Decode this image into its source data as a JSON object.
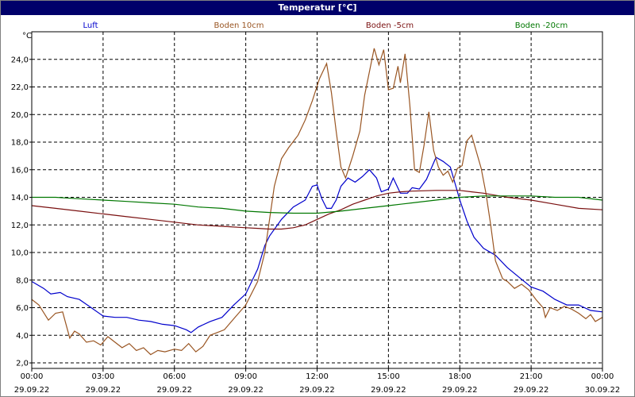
{
  "window": {
    "title": "Temperatur [°C]"
  },
  "chart_data": {
    "type": "line",
    "title": "Temperatur [°C]",
    "ylabel": "°C",
    "ylim": [
      1.6,
      26.0
    ],
    "yticks": [
      "2,0",
      "4,0",
      "6,0",
      "8,0",
      "10,0",
      "12,0",
      "14,0",
      "16,0",
      "18,0",
      "20,0",
      "22,0",
      "24,0"
    ],
    "ytick_values": [
      2,
      4,
      6,
      8,
      10,
      12,
      14,
      16,
      18,
      20,
      22,
      24
    ],
    "xlim": [
      0,
      24
    ],
    "xtick_values": [
      0,
      3,
      6,
      9,
      12,
      15,
      18,
      21,
      24
    ],
    "xtick_times": [
      "00:00",
      "03:00",
      "06:00",
      "09:00",
      "12:00",
      "15:00",
      "18:00",
      "21:00",
      "00:00"
    ],
    "xtick_dates": [
      "29.09.22",
      "29.09.22",
      "29.09.22",
      "29.09.22",
      "29.09.22",
      "29.09.22",
      "29.09.22",
      "29.09.22",
      "30.09.22"
    ],
    "grid": true,
    "legend_position": "top",
    "series": [
      {
        "name": "Luft",
        "color": "#0000cc",
        "points": [
          [
            0,
            7.9
          ],
          [
            0.5,
            7.4
          ],
          [
            0.8,
            7.0
          ],
          [
            1.2,
            7.1
          ],
          [
            1.5,
            6.8
          ],
          [
            2,
            6.6
          ],
          [
            2.5,
            6.0
          ],
          [
            3,
            5.4
          ],
          [
            3.5,
            5.3
          ],
          [
            4,
            5.3
          ],
          [
            4.5,
            5.1
          ],
          [
            5,
            5.0
          ],
          [
            5.5,
            4.8
          ],
          [
            6,
            4.7
          ],
          [
            6.5,
            4.4
          ],
          [
            6.7,
            4.2
          ],
          [
            7,
            4.6
          ],
          [
            7.5,
            5.0
          ],
          [
            8,
            5.3
          ],
          [
            8.5,
            6.2
          ],
          [
            9,
            7.0
          ],
          [
            9.5,
            8.8
          ],
          [
            9.8,
            10.5
          ],
          [
            10,
            11.2
          ],
          [
            10.5,
            12.4
          ],
          [
            11,
            13.3
          ],
          [
            11.5,
            13.8
          ],
          [
            11.8,
            14.8
          ],
          [
            12,
            14.9
          ],
          [
            12.2,
            13.9
          ],
          [
            12.4,
            13.2
          ],
          [
            12.6,
            13.2
          ],
          [
            12.8,
            13.8
          ],
          [
            13,
            14.8
          ],
          [
            13.3,
            15.4
          ],
          [
            13.6,
            15.1
          ],
          [
            13.9,
            15.5
          ],
          [
            14.2,
            16.0
          ],
          [
            14.5,
            15.4
          ],
          [
            14.7,
            14.4
          ],
          [
            15,
            14.6
          ],
          [
            15.2,
            15.4
          ],
          [
            15.5,
            14.3
          ],
          [
            15.8,
            14.3
          ],
          [
            16,
            14.7
          ],
          [
            16.3,
            14.6
          ],
          [
            16.6,
            15.3
          ],
          [
            17,
            16.9
          ],
          [
            17.3,
            16.6
          ],
          [
            17.6,
            16.2
          ],
          [
            17.8,
            15.0
          ],
          [
            18,
            13.8
          ],
          [
            18.3,
            12.3
          ],
          [
            18.6,
            11.1
          ],
          [
            19,
            10.3
          ],
          [
            19.5,
            9.8
          ],
          [
            20,
            8.9
          ],
          [
            20.5,
            8.2
          ],
          [
            21,
            7.5
          ],
          [
            21.5,
            7.2
          ],
          [
            22,
            6.6
          ],
          [
            22.5,
            6.2
          ],
          [
            23,
            6.2
          ],
          [
            23.5,
            5.8
          ],
          [
            24,
            5.7
          ]
        ]
      },
      {
        "name": "Boden 10cm",
        "color": "#995522",
        "points": [
          [
            0,
            6.6
          ],
          [
            0.3,
            6.2
          ],
          [
            0.7,
            5.1
          ],
          [
            1,
            5.6
          ],
          [
            1.3,
            5.7
          ],
          [
            1.6,
            3.8
          ],
          [
            1.8,
            4.3
          ],
          [
            2,
            4.1
          ],
          [
            2.3,
            3.5
          ],
          [
            2.6,
            3.6
          ],
          [
            2.9,
            3.3
          ],
          [
            3.2,
            3.9
          ],
          [
            3.5,
            3.5
          ],
          [
            3.8,
            3.1
          ],
          [
            4.1,
            3.4
          ],
          [
            4.4,
            2.9
          ],
          [
            4.7,
            3.1
          ],
          [
            5,
            2.6
          ],
          [
            5.3,
            2.9
          ],
          [
            5.6,
            2.8
          ],
          [
            6,
            3.0
          ],
          [
            6.3,
            2.9
          ],
          [
            6.6,
            3.4
          ],
          [
            6.9,
            2.8
          ],
          [
            7.2,
            3.2
          ],
          [
            7.5,
            4.0
          ],
          [
            7.8,
            4.2
          ],
          [
            8.1,
            4.4
          ],
          [
            8.5,
            5.2
          ],
          [
            9,
            6.2
          ],
          [
            9.5,
            7.9
          ],
          [
            9.8,
            10.0
          ],
          [
            10,
            12.4
          ],
          [
            10.2,
            14.8
          ],
          [
            10.5,
            16.8
          ],
          [
            10.8,
            17.6
          ],
          [
            11.2,
            18.5
          ],
          [
            11.5,
            19.6
          ],
          [
            11.8,
            21.0
          ],
          [
            12.1,
            22.6
          ],
          [
            12.4,
            23.7
          ],
          [
            12.6,
            21.6
          ],
          [
            12.8,
            18.8
          ],
          [
            13.0,
            16.2
          ],
          [
            13.2,
            15.4
          ],
          [
            13.5,
            17.0
          ],
          [
            13.8,
            18.8
          ],
          [
            14.0,
            21.4
          ],
          [
            14.2,
            23.1
          ],
          [
            14.4,
            24.8
          ],
          [
            14.6,
            23.6
          ],
          [
            14.8,
            24.7
          ],
          [
            15.0,
            21.8
          ],
          [
            15.2,
            21.9
          ],
          [
            15.4,
            23.5
          ],
          [
            15.5,
            22.3
          ],
          [
            15.7,
            24.4
          ],
          [
            15.9,
            20.7
          ],
          [
            16.1,
            16.0
          ],
          [
            16.3,
            15.8
          ],
          [
            16.5,
            17.8
          ],
          [
            16.7,
            20.2
          ],
          [
            16.9,
            17.4
          ],
          [
            17.1,
            16.2
          ],
          [
            17.3,
            15.6
          ],
          [
            17.5,
            15.9
          ],
          [
            17.7,
            15.1
          ],
          [
            17.9,
            16.1
          ],
          [
            18.1,
            16.3
          ],
          [
            18.3,
            18.1
          ],
          [
            18.5,
            18.5
          ],
          [
            18.7,
            17.3
          ],
          [
            18.9,
            16.1
          ],
          [
            19.1,
            14.3
          ],
          [
            19.3,
            12.0
          ],
          [
            19.5,
            9.4
          ],
          [
            19.8,
            8.1
          ],
          [
            20,
            7.9
          ],
          [
            20.3,
            7.4
          ],
          [
            20.6,
            7.7
          ],
          [
            20.9,
            7.3
          ],
          [
            21.2,
            6.6
          ],
          [
            21.5,
            6.0
          ],
          [
            21.6,
            5.3
          ],
          [
            21.8,
            6.0
          ],
          [
            22.1,
            5.8
          ],
          [
            22.4,
            6.1
          ],
          [
            22.7,
            5.9
          ],
          [
            23,
            5.6
          ],
          [
            23.3,
            5.2
          ],
          [
            23.5,
            5.5
          ],
          [
            23.7,
            5.0
          ],
          [
            24,
            5.3
          ]
        ]
      },
      {
        "name": "Boden -5cm",
        "color": "#7a1010",
        "points": [
          [
            0,
            13.4
          ],
          [
            1,
            13.2
          ],
          [
            2,
            13.0
          ],
          [
            3,
            12.8
          ],
          [
            4,
            12.6
          ],
          [
            5,
            12.4
          ],
          [
            6,
            12.2
          ],
          [
            7,
            12.0
          ],
          [
            8,
            11.9
          ],
          [
            9,
            11.8
          ],
          [
            9.5,
            11.75
          ],
          [
            10,
            11.7
          ],
          [
            10.5,
            11.7
          ],
          [
            11,
            11.8
          ],
          [
            11.5,
            12.0
          ],
          [
            12,
            12.4
          ],
          [
            12.5,
            12.8
          ],
          [
            13,
            13.1
          ],
          [
            13.5,
            13.5
          ],
          [
            14,
            13.8
          ],
          [
            14.5,
            14.1
          ],
          [
            15,
            14.3
          ],
          [
            15.5,
            14.4
          ],
          [
            16,
            14.45
          ],
          [
            17,
            14.5
          ],
          [
            18,
            14.5
          ],
          [
            18.5,
            14.4
          ],
          [
            19,
            14.3
          ],
          [
            20,
            14.0
          ],
          [
            21,
            13.8
          ],
          [
            22,
            13.5
          ],
          [
            23,
            13.2
          ],
          [
            24,
            13.1
          ]
        ]
      },
      {
        "name": "Boden -20cm",
        "color": "#007700",
        "points": [
          [
            0,
            14.0
          ],
          [
            1,
            14.0
          ],
          [
            2,
            13.9
          ],
          [
            3,
            13.8
          ],
          [
            4,
            13.7
          ],
          [
            5,
            13.6
          ],
          [
            6,
            13.5
          ],
          [
            7,
            13.3
          ],
          [
            8,
            13.2
          ],
          [
            9,
            13.0
          ],
          [
            10,
            12.9
          ],
          [
            11,
            12.85
          ],
          [
            12,
            12.85
          ],
          [
            13,
            13.0
          ],
          [
            14,
            13.2
          ],
          [
            15,
            13.4
          ],
          [
            16,
            13.6
          ],
          [
            17,
            13.8
          ],
          [
            18,
            14.0
          ],
          [
            19,
            14.1
          ],
          [
            20,
            14.1
          ],
          [
            21,
            14.1
          ],
          [
            22,
            14.0
          ],
          [
            23,
            14.0
          ],
          [
            24,
            13.8
          ]
        ]
      }
    ]
  }
}
